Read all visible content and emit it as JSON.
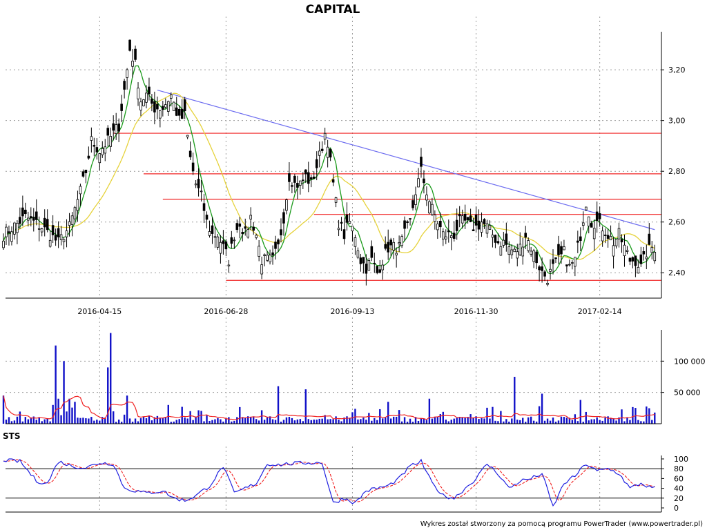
{
  "title": "CAPITAL",
  "footer": "Wykres został stworzony za pomocą programu PowerTrader (www.powertrader.pl)",
  "colors": {
    "candle": "#000000",
    "ma_short": "#1a9a1a",
    "ma_long": "#e6d23a",
    "trendline": "#6c6cf0",
    "support_resistance": "#f02020",
    "volume_bar": "#1010c8",
    "volume_ma": "#f02020",
    "sts_k": "#2020e0",
    "sts_d": "#f02020",
    "grid": "#9a9a9a"
  },
  "chart_data": [
    {
      "type": "candlestick",
      "panel": "price",
      "title": "CAPITAL",
      "x_ticks": [
        "2016-04-15",
        "2016-06-28",
        "2016-09-13",
        "2016-11-30",
        "2017-02-14"
      ],
      "y_ticks": [
        "2,40",
        "2,60",
        "2,80",
        "3,00",
        "3,20"
      ],
      "ylim": [
        2.3,
        3.35
      ],
      "grid": true,
      "close_path": [
        [
          0,
          2.55
        ],
        [
          8,
          2.62
        ],
        [
          14,
          2.58
        ],
        [
          20,
          2.52
        ],
        [
          24,
          2.58
        ],
        [
          28,
          2.72
        ],
        [
          30,
          2.8
        ],
        [
          32,
          2.92
        ],
        [
          35,
          2.88
        ],
        [
          38,
          2.92
        ],
        [
          40,
          2.95
        ],
        [
          42,
          2.98
        ],
        [
          44,
          3.12
        ],
        [
          46,
          3.28
        ],
        [
          48,
          3.22
        ],
        [
          50,
          3.08
        ],
        [
          52,
          3.1
        ],
        [
          55,
          3.05
        ],
        [
          58,
          3.05
        ],
        [
          61,
          3.1
        ],
        [
          64,
          3.0
        ],
        [
          66,
          3.02
        ],
        [
          68,
          2.85
        ],
        [
          70,
          2.75
        ],
        [
          72,
          2.7
        ],
        [
          74,
          2.6
        ],
        [
          76,
          2.55
        ],
        [
          78,
          2.55
        ],
        [
          80,
          2.5
        ],
        [
          82,
          2.45
        ],
        [
          84,
          2.55
        ],
        [
          86,
          2.6
        ],
        [
          88,
          2.55
        ],
        [
          90,
          2.62
        ],
        [
          92,
          2.55
        ],
        [
          94,
          2.45
        ],
        [
          96,
          2.45
        ],
        [
          98,
          2.45
        ],
        [
          100,
          2.5
        ],
        [
          102,
          2.62
        ],
        [
          104,
          2.78
        ],
        [
          106,
          2.75
        ],
        [
          108,
          2.75
        ],
        [
          110,
          2.78
        ],
        [
          112,
          2.75
        ],
        [
          114,
          2.82
        ],
        [
          116,
          2.9
        ],
        [
          117,
          2.95
        ],
        [
          118,
          2.92
        ],
        [
          120,
          2.75
        ],
        [
          122,
          2.6
        ],
        [
          124,
          2.55
        ],
        [
          126,
          2.6
        ],
        [
          128,
          2.55
        ],
        [
          130,
          2.45
        ],
        [
          132,
          2.42
        ],
        [
          134,
          2.45
        ],
        [
          136,
          2.4
        ],
        [
          138,
          2.45
        ],
        [
          140,
          2.5
        ],
        [
          142,
          2.5
        ],
        [
          144,
          2.5
        ],
        [
          146,
          2.55
        ],
        [
          148,
          2.6
        ],
        [
          150,
          2.72
        ],
        [
          152,
          2.8
        ],
        [
          154,
          2.72
        ],
        [
          156,
          2.65
        ],
        [
          158,
          2.6
        ],
        [
          160,
          2.55
        ],
        [
          162,
          2.55
        ],
        [
          164,
          2.55
        ],
        [
          166,
          2.6
        ],
        [
          168,
          2.6
        ],
        [
          170,
          2.58
        ],
        [
          172,
          2.58
        ],
        [
          174,
          2.6
        ],
        [
          176,
          2.58
        ],
        [
          178,
          2.55
        ],
        [
          180,
          2.52
        ],
        [
          182,
          2.52
        ],
        [
          184,
          2.5
        ],
        [
          186,
          2.48
        ],
        [
          188,
          2.5
        ],
        [
          190,
          2.55
        ],
        [
          192,
          2.5
        ],
        [
          194,
          2.45
        ],
        [
          196,
          2.4
        ],
        [
          198,
          2.38
        ],
        [
          200,
          2.42
        ],
        [
          202,
          2.45
        ],
        [
          204,
          2.48
        ],
        [
          206,
          2.42
        ],
        [
          208,
          2.45
        ],
        [
          210,
          2.55
        ],
        [
          212,
          2.68
        ],
        [
          214,
          2.6
        ],
        [
          216,
          2.6
        ],
        [
          218,
          2.58
        ],
        [
          220,
          2.55
        ],
        [
          222,
          2.52
        ],
        [
          224,
          2.55
        ],
        [
          226,
          2.5
        ],
        [
          228,
          2.45
        ],
        [
          230,
          2.45
        ],
        [
          232,
          2.42
        ],
        [
          234,
          2.48
        ],
        [
          236,
          2.5
        ]
      ],
      "series": [
        {
          "name": "",
          "type": "moving_average_short",
          "color": "#1a9a1a"
        },
        {
          "name": "",
          "type": "moving_average_long",
          "color": "#e6d23a"
        }
      ],
      "trendline": {
        "from": [
          56,
          3.12
        ],
        "to": [
          237,
          2.57
        ]
      },
      "horizontal_lines": [
        {
          "y": 2.95,
          "x_from": 40
        },
        {
          "y": 2.79,
          "x_from": 51
        },
        {
          "y": 2.69,
          "x_from": 58
        },
        {
          "y": 2.63,
          "x_from": 113
        },
        {
          "y": 2.37,
          "x_from": 81
        }
      ]
    },
    {
      "type": "bar",
      "panel": "volume",
      "y_ticks": [
        "50 000",
        "100 000"
      ],
      "ylim": [
        0,
        150000
      ],
      "spikes": [
        [
          0,
          45000
        ],
        [
          18,
          30000
        ],
        [
          19,
          125000
        ],
        [
          20,
          40000
        ],
        [
          22,
          100000
        ],
        [
          24,
          40000
        ],
        [
          26,
          35000
        ],
        [
          38,
          90000
        ],
        [
          39,
          145000
        ],
        [
          45,
          45000
        ],
        [
          60,
          30000
        ],
        [
          100,
          60000
        ],
        [
          110,
          55000
        ],
        [
          140,
          35000
        ],
        [
          155,
          40000
        ],
        [
          186,
          75000
        ],
        [
          196,
          48000
        ],
        [
          210,
          38000
        ]
      ],
      "series": [
        {
          "name": "",
          "type": "volume",
          "color": "#1010c8"
        },
        {
          "name": "",
          "type": "volume_ma",
          "color": "#f02020"
        }
      ]
    },
    {
      "type": "line",
      "panel": "oscillator",
      "title": "STS",
      "y_ticks": [
        "0",
        "20",
        "40",
        "60",
        "80",
        "100"
      ],
      "ylim": [
        0,
        100
      ],
      "reference_lines": [
        20,
        80
      ],
      "k_path": [
        [
          0,
          98
        ],
        [
          6,
          95
        ],
        [
          12,
          55
        ],
        [
          16,
          50
        ],
        [
          20,
          95
        ],
        [
          25,
          85
        ],
        [
          30,
          82
        ],
        [
          35,
          92
        ],
        [
          40,
          90
        ],
        [
          44,
          40
        ],
        [
          48,
          35
        ],
        [
          52,
          30
        ],
        [
          58,
          35
        ],
        [
          62,
          20
        ],
        [
          66,
          15
        ],
        [
          70,
          25
        ],
        [
          75,
          45
        ],
        [
          80,
          85
        ],
        [
          84,
          30
        ],
        [
          88,
          40
        ],
        [
          92,
          50
        ],
        [
          96,
          90
        ],
        [
          100,
          88
        ],
        [
          104,
          90
        ],
        [
          110,
          92
        ],
        [
          116,
          92
        ],
        [
          120,
          10
        ],
        [
          124,
          20
        ],
        [
          128,
          10
        ],
        [
          132,
          35
        ],
        [
          136,
          40
        ],
        [
          140,
          45
        ],
        [
          144,
          60
        ],
        [
          148,
          85
        ],
        [
          152,
          95
        ],
        [
          156,
          50
        ],
        [
          160,
          25
        ],
        [
          164,
          20
        ],
        [
          168,
          40
        ],
        [
          172,
          60
        ],
        [
          176,
          90
        ],
        [
          180,
          70
        ],
        [
          184,
          40
        ],
        [
          188,
          55
        ],
        [
          192,
          60
        ],
        [
          196,
          70
        ],
        [
          200,
          2
        ],
        [
          204,
          50
        ],
        [
          208,
          65
        ],
        [
          212,
          90
        ],
        [
          216,
          75
        ],
        [
          220,
          80
        ],
        [
          224,
          70
        ],
        [
          228,
          40
        ],
        [
          232,
          50
        ],
        [
          236,
          40
        ]
      ],
      "series": [
        {
          "name": "",
          "type": "sts_k",
          "color": "#2020e0"
        },
        {
          "name": "",
          "type": "sts_d",
          "color": "#f02020",
          "dashed": true
        }
      ]
    }
  ]
}
